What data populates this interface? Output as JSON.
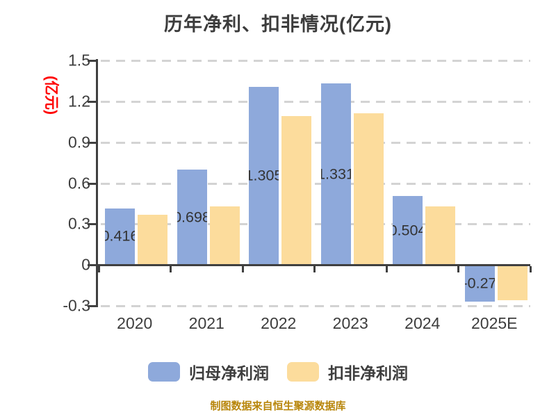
{
  "title": "历年净利、扣非情况(亿元)",
  "y_axis_unit": "(亿元)",
  "source_note": "制图数据来自恒生聚源数据库",
  "legend": {
    "items": [
      {
        "label": "归母净利润",
        "color": "#8EA9DB"
      },
      {
        "label": "扣非净利润",
        "color": "#FCDC9C"
      }
    ]
  },
  "colors": {
    "title": "#3C3C3C",
    "axis_line": "#404040",
    "axis_text": "#3D3D3D",
    "grid": "#D3D3D3",
    "bar_label": "#333333",
    "unit_label": "#FF0000",
    "source_note": "#B8860B",
    "series_blue": "#8EA9DB",
    "series_yellow": "#FCDC9C"
  },
  "chart_data": {
    "type": "bar",
    "title": "历年净利、扣非情况(亿元)",
    "ylabel": "(亿元)",
    "categories": [
      "2020",
      "2021",
      "2022",
      "2023",
      "2024",
      "2025E"
    ],
    "series": [
      {
        "name": "归母净利润",
        "color": "#8EA9DB",
        "values": [
          0.416,
          0.698,
          1.305,
          1.331,
          0.504,
          -0.27
        ],
        "labels": [
          "0.416",
          "0.698",
          "1.305",
          "1.331",
          "0.504",
          "-0.27"
        ]
      },
      {
        "name": "扣非净利润",
        "color": "#FCDC9C",
        "values": [
          0.37,
          0.43,
          1.09,
          1.11,
          0.43,
          -0.26
        ],
        "labels": []
      }
    ],
    "ylim": [
      -0.3,
      1.5
    ],
    "yticks": [
      "1.5",
      "1.2",
      "0.9",
      "0.6",
      "0.3",
      "0",
      "-0.3"
    ],
    "grid": "horizontal-dashed",
    "legend_position": "bottom"
  }
}
